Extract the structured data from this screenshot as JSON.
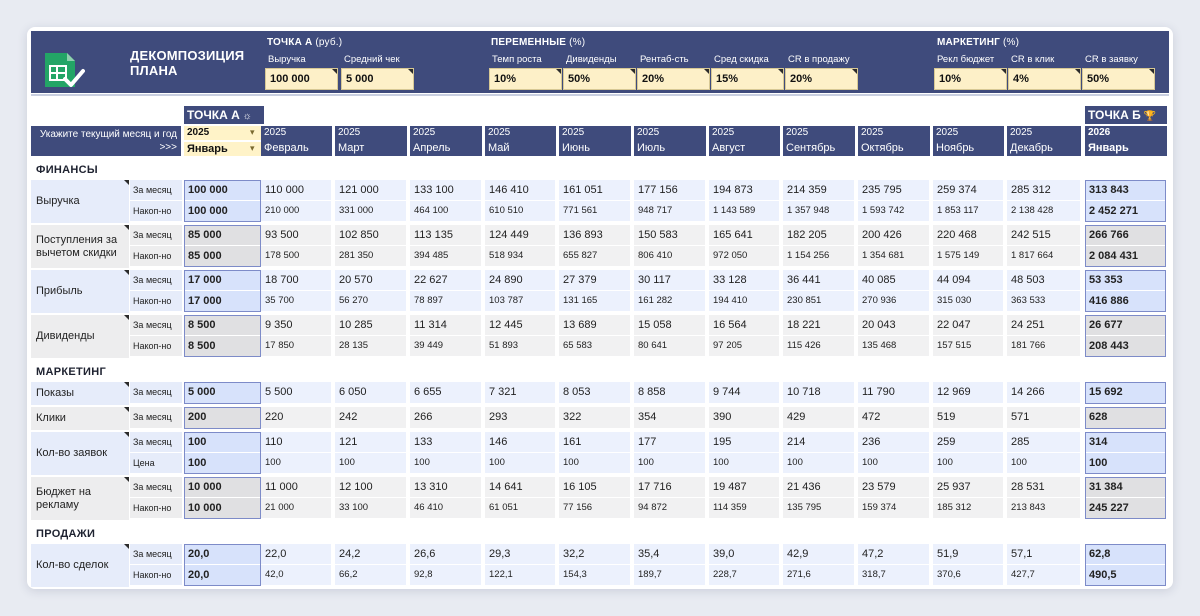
{
  "title": "ДЕКОМПОЗИЦИЯ ПЛАНА",
  "header": {
    "point_a": {
      "title": "ТОЧКА А",
      "unit": "(руб.)",
      "fields": [
        {
          "label": "Выручка",
          "value": "100 000"
        },
        {
          "label": "Средний чек",
          "value": "5 000"
        }
      ]
    },
    "variables": {
      "title": "ПЕРЕМЕННЫЕ",
      "unit": "(%)",
      "fields": [
        {
          "label": "Темп роста",
          "value": "10%"
        },
        {
          "label": "Дивиденды",
          "value": "50%"
        },
        {
          "label": "Рентаб-сть",
          "value": "20%"
        },
        {
          "label": "Сред скидка",
          "value": "15%"
        },
        {
          "label": "CR в продажу",
          "value": "20%"
        }
      ]
    },
    "marketing": {
      "title": "МАРКЕТИНГ",
      "unit": "(%)",
      "fields": [
        {
          "label": "Рекл бюджет",
          "value": "10%"
        },
        {
          "label": "CR в клик",
          "value": "4%"
        },
        {
          "label": "CR в заявку",
          "value": "50%"
        }
      ]
    }
  },
  "tag_a": "ТОЧКА А",
  "tag_b": "ТОЧКА Б",
  "prompt_label": "Укажите текущий месяц и год >>>",
  "year_select": "2025",
  "month_select": "Январь",
  "months": [
    {
      "year": "2025",
      "month": "Февраль"
    },
    {
      "year": "2025",
      "month": "Март"
    },
    {
      "year": "2025",
      "month": "Апрель"
    },
    {
      "year": "2025",
      "month": "Май"
    },
    {
      "year": "2025",
      "month": "Июнь"
    },
    {
      "year": "2025",
      "month": "Июль"
    },
    {
      "year": "2025",
      "month": "Август"
    },
    {
      "year": "2025",
      "month": "Сентябрь"
    },
    {
      "year": "2025",
      "month": "Октябрь"
    },
    {
      "year": "2025",
      "month": "Ноябрь"
    },
    {
      "year": "2025",
      "month": "Декабрь"
    },
    {
      "year": "2026",
      "month": "Январь"
    }
  ],
  "sections": [
    {
      "title": "ФИНАНСЫ",
      "rows": [
        {
          "label": "Выручка",
          "style": "blue",
          "sub": [
            {
              "name": "За месяц",
              "values": [
                "100 000",
                "110 000",
                "121 000",
                "133 100",
                "146 410",
                "161 051",
                "177 156",
                "194 873",
                "214 359",
                "235 795",
                "259 374",
                "285 312",
                "313 843"
              ]
            },
            {
              "name": "Накоп-но",
              "values": [
                "100 000",
                "210 000",
                "331 000",
                "464 100",
                "610 510",
                "771 561",
                "948 717",
                "1 143 589",
                "1 357 948",
                "1 593 742",
                "1 853 117",
                "2 138 428",
                "2 452 271"
              ]
            }
          ]
        },
        {
          "label": "Поступления за вычетом скидки",
          "style": "gray",
          "sub": [
            {
              "name": "За месяц",
              "values": [
                "85 000",
                "93 500",
                "102 850",
                "113 135",
                "124 449",
                "136 893",
                "150 583",
                "165 641",
                "182 205",
                "200 426",
                "220 468",
                "242 515",
                "266 766"
              ]
            },
            {
              "name": "Накоп-но",
              "values": [
                "85 000",
                "178 500",
                "281 350",
                "394 485",
                "518 934",
                "655 827",
                "806 410",
                "972 050",
                "1 154 256",
                "1 354 681",
                "1 575 149",
                "1 817 664",
                "2 084 431"
              ]
            }
          ]
        },
        {
          "label": "Прибыль",
          "style": "blue",
          "sub": [
            {
              "name": "За месяц",
              "values": [
                "17 000",
                "18 700",
                "20 570",
                "22 627",
                "24 890",
                "27 379",
                "30 117",
                "33 128",
                "36 441",
                "40 085",
                "44 094",
                "48 503",
                "53 353"
              ]
            },
            {
              "name": "Накоп-но",
              "values": [
                "17 000",
                "35 700",
                "56 270",
                "78 897",
                "103 787",
                "131 165",
                "161 282",
                "194 410",
                "230 851",
                "270 936",
                "315 030",
                "363 533",
                "416 886"
              ]
            }
          ]
        },
        {
          "label": "Дивиденды",
          "style": "gray",
          "sub": [
            {
              "name": "За месяц",
              "values": [
                "8 500",
                "9 350",
                "10 285",
                "11 314",
                "12 445",
                "13 689",
                "15 058",
                "16 564",
                "18 221",
                "20 043",
                "22 047",
                "24 251",
                "26 677"
              ]
            },
            {
              "name": "Накоп-но",
              "values": [
                "8 500",
                "17 850",
                "28 135",
                "39 449",
                "51 893",
                "65 583",
                "80 641",
                "97 205",
                "115 426",
                "135 468",
                "157 515",
                "181 766",
                "208 443"
              ]
            }
          ]
        }
      ]
    },
    {
      "title": "МАРКЕТИНГ",
      "rows": [
        {
          "label": "Показы",
          "style": "blue",
          "sub": [
            {
              "name": "За месяц",
              "values": [
                "5 000",
                "5 500",
                "6 050",
                "6 655",
                "7 321",
                "8 053",
                "8 858",
                "9 744",
                "10 718",
                "11 790",
                "12 969",
                "14 266",
                "15 692"
              ]
            }
          ]
        },
        {
          "label": "Клики",
          "style": "gray",
          "sub": [
            {
              "name": "За месяц",
              "values": [
                "200",
                "220",
                "242",
                "266",
                "293",
                "322",
                "354",
                "390",
                "429",
                "472",
                "519",
                "571",
                "628"
              ]
            }
          ]
        },
        {
          "label": "Кол-во заявок",
          "style": "blue",
          "sub": [
            {
              "name": "За месяц",
              "values": [
                "100",
                "110",
                "121",
                "133",
                "146",
                "161",
                "177",
                "195",
                "214",
                "236",
                "259",
                "285",
                "314"
              ]
            },
            {
              "name": "Цена",
              "values": [
                "100",
                "100",
                "100",
                "100",
                "100",
                "100",
                "100",
                "100",
                "100",
                "100",
                "100",
                "100",
                "100"
              ]
            }
          ]
        },
        {
          "label": "Бюджет на рекламу",
          "style": "gray",
          "sub": [
            {
              "name": "За месяц",
              "values": [
                "10 000",
                "11 000",
                "12 100",
                "13 310",
                "14 641",
                "16 105",
                "17 716",
                "19 487",
                "21 436",
                "23 579",
                "25 937",
                "28 531",
                "31 384"
              ]
            },
            {
              "name": "Накоп-но",
              "values": [
                "10 000",
                "21 000",
                "33 100",
                "46 410",
                "61 051",
                "77 156",
                "94 872",
                "114 359",
                "135 795",
                "159 374",
                "185 312",
                "213 843",
                "245 227"
              ]
            }
          ]
        }
      ]
    },
    {
      "title": "ПРОДАЖИ",
      "rows": [
        {
          "label": "Кол-во сделок",
          "style": "blue",
          "sub": [
            {
              "name": "За месяц",
              "values": [
                "20,0",
                "22,0",
                "24,2",
                "26,6",
                "29,3",
                "32,2",
                "35,4",
                "39,0",
                "42,9",
                "47,2",
                "51,9",
                "57,1",
                "62,8"
              ]
            },
            {
              "name": "Накоп-но",
              "values": [
                "20,0",
                "42,0",
                "66,2",
                "92,8",
                "122,1",
                "154,3",
                "189,7",
                "228,7",
                "271,6",
                "318,7",
                "370,6",
                "427,7",
                "490,5"
              ]
            }
          ]
        }
      ]
    }
  ]
}
